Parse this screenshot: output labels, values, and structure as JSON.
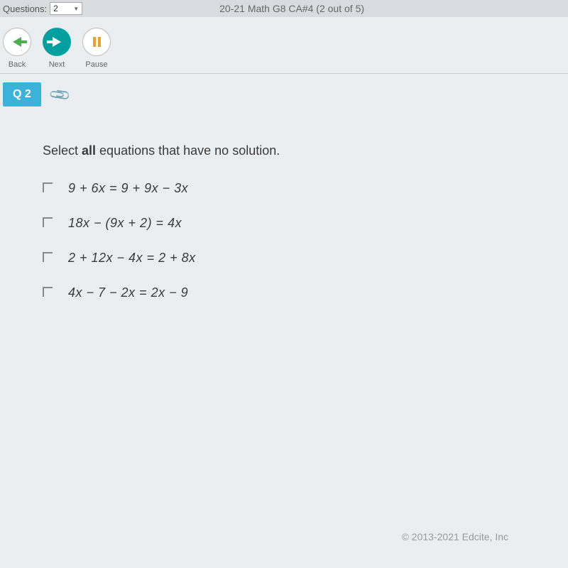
{
  "header": {
    "questions_label": "Questions:",
    "questions_value": "2",
    "title": "20-21 Math G8 CA#4 (2 out of 5)"
  },
  "nav": {
    "back_label": "Back",
    "next_label": "Next",
    "pause_label": "Pause"
  },
  "question": {
    "badge": "Q 2",
    "prompt_prefix": "Select ",
    "prompt_bold": "all",
    "prompt_suffix": " equations that have no solution.",
    "options": [
      "9 + 6x = 9 + 9x − 3x",
      "18x − (9x + 2) = 4x",
      "2 + 12x − 4x = 2 + 8x",
      "4x − 7 − 2x = 2x − 9"
    ]
  },
  "footer": {
    "copyright": "© 2013-2021 Edcite, Inc"
  },
  "colors": {
    "topbar_bg": "#d8dce0",
    "body_bg": "#ebeef0",
    "next_btn": "#00a0a0",
    "back_arrow": "#4caf50",
    "pause_color": "#e8a030",
    "badge_bg": "#3bb3d8",
    "text_main": "#3a3a3a",
    "text_muted": "#666"
  }
}
